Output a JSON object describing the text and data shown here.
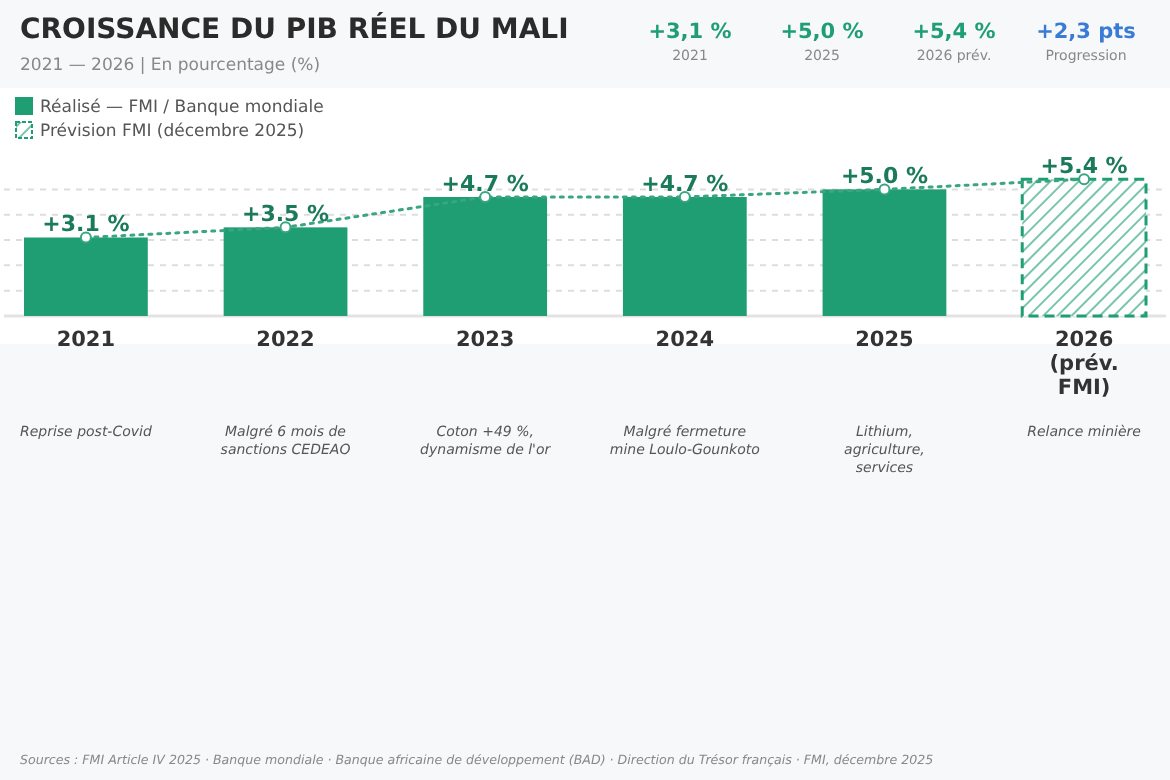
{
  "chart_data": {
    "type": "bar",
    "title": "CROISSANCE DU PIB RÉEL DU MALI",
    "subtitle": "2021 — 2026  |  En pourcentage (%)",
    "categories": [
      "2021",
      "2022",
      "2023",
      "2024",
      "2025",
      "2026 (prév. FMI)"
    ],
    "series": [
      {
        "name": "Réalisé — FMI / Banque mondiale",
        "color": "#1f9e74",
        "values": [
          3.1,
          3.5,
          4.7,
          4.7,
          5.0,
          null
        ],
        "value_labels": [
          "+3.1 %",
          "+3.5 %",
          "+4.7 %",
          "+4.7 %",
          "+5.0 %",
          null
        ]
      },
      {
        "name": "Prévision FMI (décembre 2025)",
        "color": "#1f9e74",
        "values": [
          null,
          null,
          null,
          null,
          null,
          5.4
        ],
        "value_labels": [
          null,
          null,
          null,
          null,
          null,
          "+5.4 %"
        ]
      },
      {
        "type": "line",
        "color": "#3aa57f",
        "values": [
          3.1,
          3.5,
          4.7,
          4.7,
          5.0,
          5.4
        ],
        "line_style": "dotted",
        "marker": "circle"
      }
    ],
    "yticks": [
      {
        "value": 1,
        "label": null
      },
      {
        "value": 2,
        "label": null
      },
      {
        "value": 3,
        "label": null
      },
      {
        "value": 4,
        "label": null
      },
      {
        "value": 5,
        "label": null
      }
    ],
    "tick_labels": "x",
    "grid": "y",
    "legend": "top left",
    "annotations": [
      "+3,1 %",
      "2021",
      "+5,0 %",
      "2025",
      "+5,4 %",
      "2026 prév.",
      "+2,3 pts",
      "Progression",
      "Reprise post-Covid",
      "Malgré 6 mois de sanctions CEDEAO",
      "Coton +49 %, dynamisme de l'or",
      "Malgré fermeture mine Loulo-Gounkoto",
      "Lithium, agriculture, services",
      "Relance minière",
      "Sources : FMI Article IV 2025 · Banque mondiale · Banque africaine de développement (BAD) · Direction du Trésor français · FMI, décembre 2025"
    ]
  }
}
